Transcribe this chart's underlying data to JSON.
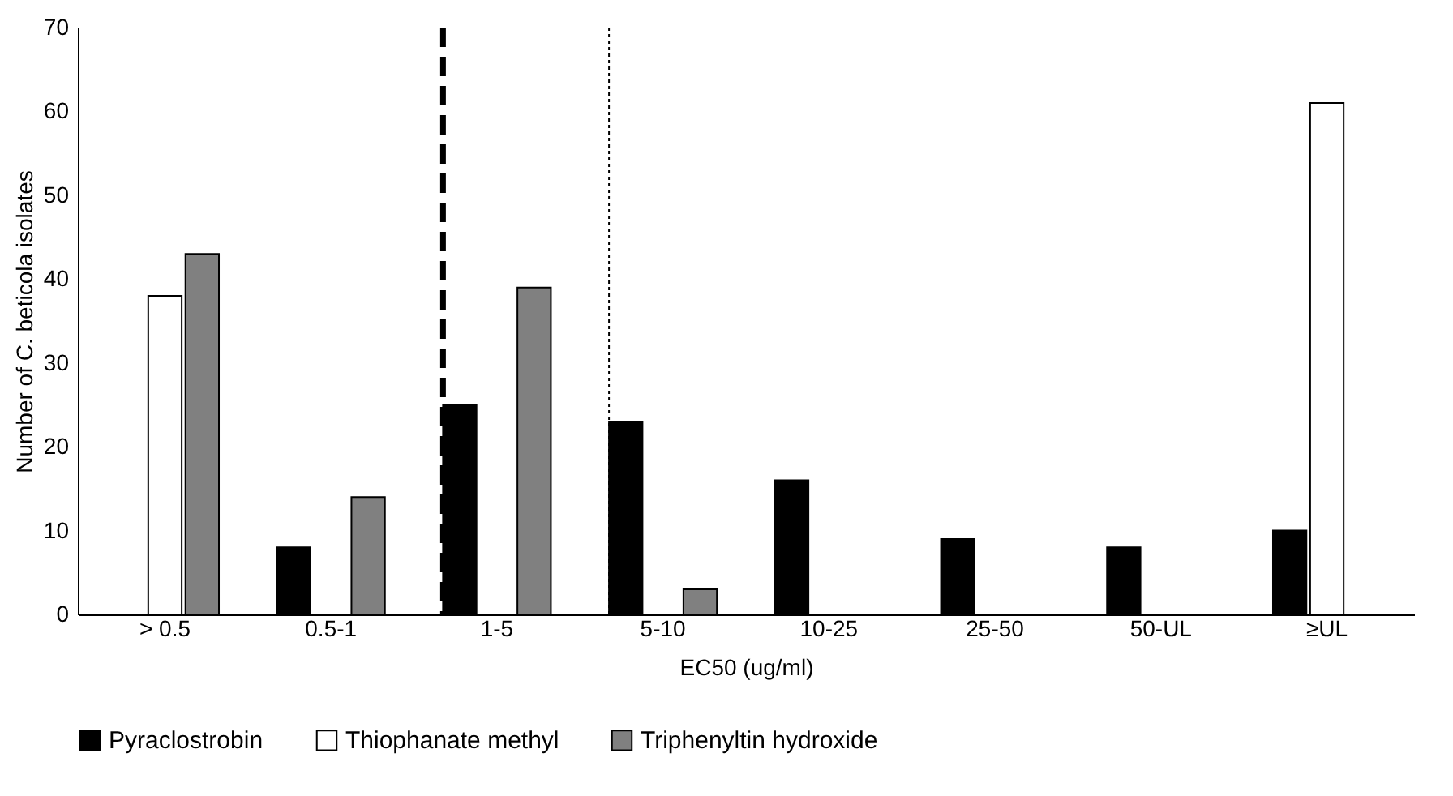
{
  "chart_data": {
    "type": "bar",
    "xlabel": "EC50 (ug/ml)",
    "ylabel": "Number of C. beticola isolates",
    "categories": [
      "> 0.5",
      "0.5-1",
      "1-5",
      "5-10",
      "10-25",
      "25-50",
      "50-UL",
      "≥UL"
    ],
    "series": [
      {
        "name": "Pyraclostrobin",
        "color": "#000000",
        "values": [
          0,
          8,
          25,
          23,
          16,
          9,
          8,
          10
        ]
      },
      {
        "name": "Thiophanate methyl",
        "color": "#ffffff",
        "values": [
          38,
          0,
          0,
          0,
          0,
          0,
          0,
          61
        ]
      },
      {
        "name": "Triphenyltin hydroxide",
        "color": "#808080",
        "values": [
          43,
          14,
          39,
          3,
          0,
          0,
          0,
          0
        ]
      }
    ],
    "ylim": [
      0,
      70
    ],
    "yticks": [
      0,
      10,
      20,
      30,
      40,
      50,
      60,
      70
    ],
    "grid": false,
    "legend": "bottom",
    "ref_lines": [
      {
        "axis": "x",
        "value": "1-5",
        "color": "#000000",
        "line_style": "dashed"
      },
      {
        "axis": "x",
        "value": "5-10",
        "color": "#000000",
        "line_style": "dotted"
      }
    ]
  }
}
